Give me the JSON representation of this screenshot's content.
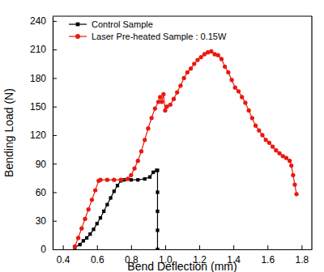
{
  "chart_data": {
    "type": "line",
    "x_label": "Bend Deflection (mm)",
    "y_label": "Bending Load (N)",
    "xlim": [
      0.34,
      1.86
    ],
    "ylim": [
      0,
      245
    ],
    "xticks": [
      0.4,
      0.6,
      0.8,
      {
        "value": 1,
        "label": "1.0"
      },
      1.2,
      1.4,
      1.6,
      1.8
    ],
    "yticks": [
      0,
      30,
      60,
      90,
      120,
      150,
      180,
      210,
      240
    ],
    "legend": "upper-left",
    "series": [
      {
        "name": "Control Sample",
        "color": "#000000",
        "marker": "square",
        "x": [
          0.47,
          0.5,
          0.52,
          0.54,
          0.56,
          0.58,
          0.6,
          0.62,
          0.64,
          0.66,
          0.68,
          0.7,
          0.72,
          0.74,
          0.76,
          0.8,
          0.84,
          0.88,
          0.91,
          0.93,
          0.95,
          0.955,
          0.955,
          0.955,
          0.955,
          0.955
        ],
        "values": [
          2,
          5,
          9,
          12,
          16,
          21,
          27,
          33,
          40,
          47,
          54,
          61,
          67,
          72,
          73,
          73,
          73,
          74,
          76,
          81,
          83,
          83,
          60,
          40,
          20,
          0
        ]
      },
      {
        "name": "Laser Pre-heated Sample : 0.15W",
        "color": "#e8190f",
        "marker": "circle",
        "x": [
          0.47,
          0.49,
          0.51,
          0.53,
          0.55,
          0.57,
          0.59,
          0.61,
          0.62,
          0.66,
          0.7,
          0.74,
          0.78,
          0.8,
          0.82,
          0.84,
          0.86,
          0.88,
          0.9,
          0.92,
          0.94,
          0.96,
          0.97,
          0.98,
          0.99,
          1.0,
          1.01,
          1.03,
          1.05,
          1.07,
          1.09,
          1.11,
          1.13,
          1.15,
          1.17,
          1.19,
          1.21,
          1.23,
          1.25,
          1.27,
          1.29,
          1.31,
          1.33,
          1.35,
          1.37,
          1.39,
          1.41,
          1.43,
          1.45,
          1.47,
          1.49,
          1.51,
          1.53,
          1.55,
          1.57,
          1.59,
          1.61,
          1.63,
          1.65,
          1.67,
          1.69,
          1.71,
          1.73,
          1.74,
          1.75,
          1.76,
          1.77
        ],
        "values": [
          3,
          12,
          22,
          32,
          42,
          52,
          62,
          72,
          73,
          73,
          73,
          73,
          74,
          78,
          85,
          93,
          103,
          115,
          127,
          138,
          148,
          155,
          160,
          155,
          163,
          146,
          150,
          152,
          158,
          165,
          172,
          180,
          186,
          190,
          195,
          199,
          202,
          205,
          207,
          208,
          205,
          204,
          200,
          192,
          186,
          178,
          170,
          166,
          160,
          154,
          146,
          138,
          130,
          125,
          120,
          115,
          112,
          108,
          104,
          101,
          98,
          96,
          93,
          88,
          78,
          68,
          58
        ]
      }
    ]
  }
}
